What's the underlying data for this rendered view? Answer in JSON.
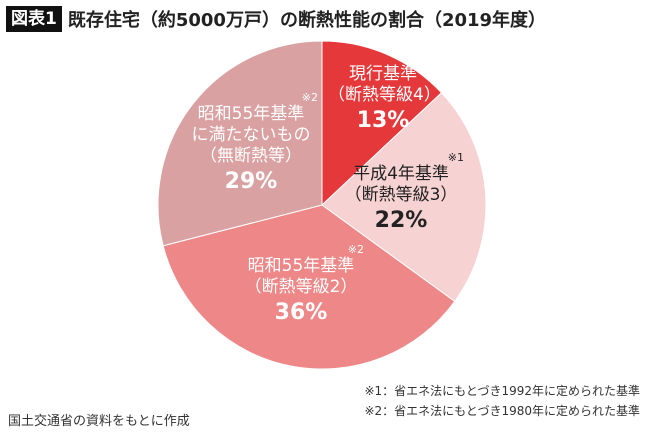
{
  "header": {
    "badge": "図表1",
    "title": "既存住宅（約5000万戸）の断熱性能の割合（2019年度）"
  },
  "chart_data": {
    "type": "pie",
    "title": "既存住宅（約5000万戸）の断熱性能の割合（2019年度）",
    "start": "top",
    "direction": "clockwise",
    "slices": [
      {
        "label": "現行基準",
        "sub": "（断熱等級4）",
        "note": "",
        "value": 13,
        "pct_label": "13%",
        "color": "#e5383b",
        "text_color": "#ffffff"
      },
      {
        "label": "平成4年基準",
        "sub": "（断熱等級3）",
        "note": "※1",
        "value": 22,
        "pct_label": "22%",
        "color": "#f6d2d2",
        "text_color": "#222222"
      },
      {
        "label": "昭和55年基準",
        "sub": "（断熱等級2）",
        "note": "※2",
        "value": 36,
        "pct_label": "36%",
        "color": "#ee8787",
        "text_color": "#ffffff"
      },
      {
        "label": "昭和55年基準に満たないもの",
        "label_lines": [
          "昭和55年基準",
          "に満たないもの"
        ],
        "sub": "（無断熱等）",
        "note": "※2",
        "value": 29,
        "pct_label": "29%",
        "color": "#d9a1a1",
        "text_color": "#ffffff"
      }
    ]
  },
  "footnotes": [
    "※1：省エネ法にもとづき1992年に定められた基準",
    "※2：省エネ法にもとづき1980年に定められた基準"
  ],
  "source": "国土交通省の資料をもとに作成"
}
